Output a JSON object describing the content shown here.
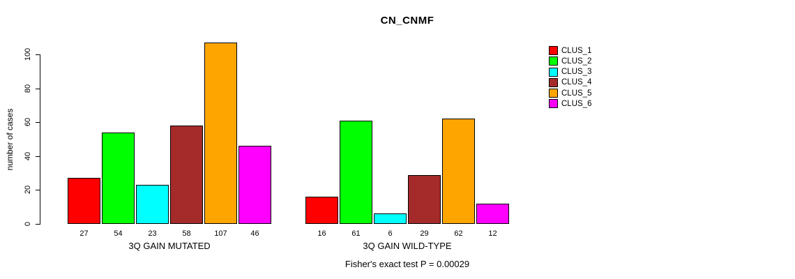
{
  "title": "CN_CNMF",
  "ylabel": "number of cases",
  "footer_note": "Fisher's exact test P = 0.00029",
  "legend": {
    "position": "right",
    "entries": [
      {
        "label": "CLUS_1",
        "color": "#FF0000"
      },
      {
        "label": "CLUS_2",
        "color": "#00FF00"
      },
      {
        "label": "CLUS_3",
        "color": "#00FFFF"
      },
      {
        "label": "CLUS_4",
        "color": "#A52A2A"
      },
      {
        "label": "CLUS_5",
        "color": "#FFA500"
      },
      {
        "label": "CLUS_6",
        "color": "#FF00FF"
      }
    ]
  },
  "chart_data": {
    "type": "bar",
    "title": "CN_CNMF",
    "xlabel": "",
    "ylabel": "number of cases",
    "ylim": [
      0,
      110
    ],
    "yticks": [
      0,
      20,
      40,
      60,
      80,
      100
    ],
    "grid": false,
    "legend_position": "right",
    "series_names": [
      "CLUS_1",
      "CLUS_2",
      "CLUS_3",
      "CLUS_4",
      "CLUS_5",
      "CLUS_6"
    ],
    "series_colors": [
      "#FF0000",
      "#00FF00",
      "#00FFFF",
      "#A52A2A",
      "#FFA500",
      "#FF00FF"
    ],
    "groups": [
      {
        "label": "3Q GAIN MUTATED",
        "values": [
          27,
          54,
          23,
          58,
          107,
          46
        ]
      },
      {
        "label": "3Q GAIN WILD-TYPE",
        "values": [
          16,
          61,
          6,
          29,
          62,
          12
        ]
      }
    ],
    "annotation": "Fisher's exact test P = 0.00029"
  }
}
